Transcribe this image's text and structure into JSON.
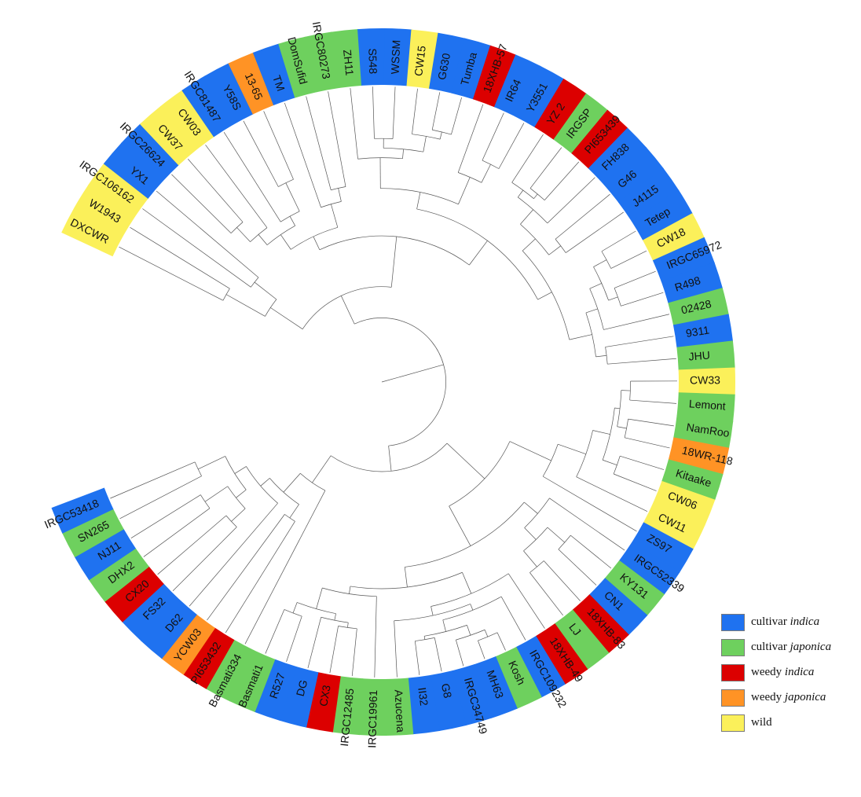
{
  "colors": {
    "cultivar_indica": "#1f72f0",
    "cultivar_japonica": "#6ed05e",
    "weedy_indica": "#dc0000",
    "weedy_japonica": "#ff9325",
    "wild": "#fbf05a",
    "branch": "#555555"
  },
  "legend": [
    {
      "key": "cultivar_indica",
      "prefix": "cultivar ",
      "italic": "indica"
    },
    {
      "key": "cultivar_japonica",
      "prefix": "cultivar ",
      "italic": "japonica"
    },
    {
      "key": "weedy_indica",
      "prefix": "weedy ",
      "italic": "indica"
    },
    {
      "key": "weedy_japonica",
      "prefix": "weedy ",
      "italic": "japonica"
    },
    {
      "key": "wild",
      "prefix": "wild",
      "italic": ""
    }
  ],
  "leaves": [
    {
      "label": "DXCWR",
      "group": "wild"
    },
    {
      "label": "W1943",
      "group": "wild"
    },
    {
      "label": "IRGC106162",
      "group": "wild"
    },
    {
      "label": "YX1",
      "group": "cultivar_indica"
    },
    {
      "label": "IRGC26624",
      "group": "cultivar_indica"
    },
    {
      "label": "CW37",
      "group": "wild"
    },
    {
      "label": "CW03",
      "group": "wild"
    },
    {
      "label": "IRGC81487",
      "group": "cultivar_indica"
    },
    {
      "label": "Y58S",
      "group": "cultivar_indica"
    },
    {
      "label": "13-65",
      "group": "weedy_japonica"
    },
    {
      "label": "TM",
      "group": "cultivar_indica"
    },
    {
      "label": "DomSufid",
      "group": "cultivar_japonica"
    },
    {
      "label": "IRGC80273",
      "group": "cultivar_japonica"
    },
    {
      "label": "ZH11",
      "group": "cultivar_japonica"
    },
    {
      "label": "S548",
      "group": "cultivar_indica"
    },
    {
      "label": "WSSM",
      "group": "cultivar_indica"
    },
    {
      "label": "CW15",
      "group": "wild"
    },
    {
      "label": "G630",
      "group": "cultivar_indica"
    },
    {
      "label": "Tumba",
      "group": "cultivar_indica"
    },
    {
      "label": "18XHB-57",
      "group": "weedy_indica"
    },
    {
      "label": "IR64",
      "group": "cultivar_indica"
    },
    {
      "label": "Y3551",
      "group": "cultivar_indica"
    },
    {
      "label": "YZ 2",
      "group": "weedy_indica"
    },
    {
      "label": "IRGSP",
      "group": "cultivar_japonica"
    },
    {
      "label": "PI653439",
      "group": "weedy_indica"
    },
    {
      "label": "FH838",
      "group": "cultivar_indica"
    },
    {
      "label": "G46",
      "group": "cultivar_indica"
    },
    {
      "label": "J4115",
      "group": "cultivar_indica"
    },
    {
      "label": "Tetep",
      "group": "cultivar_indica"
    },
    {
      "label": "CW18",
      "group": "wild"
    },
    {
      "label": "IRGC65972",
      "group": "cultivar_indica"
    },
    {
      "label": "R498",
      "group": "cultivar_indica"
    },
    {
      "label": "02428",
      "group": "cultivar_japonica"
    },
    {
      "label": "9311",
      "group": "cultivar_indica"
    },
    {
      "label": "JHU",
      "group": "cultivar_japonica"
    },
    {
      "label": "CW33",
      "group": "wild"
    },
    {
      "label": "Lemont",
      "group": "cultivar_japonica"
    },
    {
      "label": "NamRoo",
      "group": "cultivar_japonica"
    },
    {
      "label": "18WR-118",
      "group": "weedy_japonica"
    },
    {
      "label": "Kitaake",
      "group": "cultivar_japonica"
    },
    {
      "label": "CW06",
      "group": "wild"
    },
    {
      "label": "CW11",
      "group": "wild"
    },
    {
      "label": "ZS97",
      "group": "cultivar_indica"
    },
    {
      "label": "IRGC52339",
      "group": "cultivar_indica"
    },
    {
      "label": "KY131",
      "group": "cultivar_japonica"
    },
    {
      "label": "CN1",
      "group": "cultivar_indica"
    },
    {
      "label": "18XHB-83",
      "group": "weedy_indica"
    },
    {
      "label": "LJ",
      "group": "cultivar_japonica"
    },
    {
      "label": "18XHB-49",
      "group": "weedy_indica"
    },
    {
      "label": "IRGC109232",
      "group": "cultivar_indica"
    },
    {
      "label": "Kosh",
      "group": "cultivar_japonica"
    },
    {
      "label": "MH63",
      "group": "cultivar_indica"
    },
    {
      "label": "IRGC34749",
      "group": "cultivar_indica"
    },
    {
      "label": "G8",
      "group": "cultivar_indica"
    },
    {
      "label": "II32",
      "group": "cultivar_indica"
    },
    {
      "label": "Azucena",
      "group": "cultivar_japonica"
    },
    {
      "label": "IRGC19961",
      "group": "cultivar_japonica"
    },
    {
      "label": "IRGC12485",
      "group": "cultivar_japonica"
    },
    {
      "label": "CX3",
      "group": "weedy_indica"
    },
    {
      "label": "DG",
      "group": "cultivar_indica"
    },
    {
      "label": "R527",
      "group": "cultivar_indica"
    },
    {
      "label": "Basmati1",
      "group": "cultivar_japonica"
    },
    {
      "label": "Basmati334",
      "group": "cultivar_japonica"
    },
    {
      "label": "PI653432",
      "group": "weedy_indica"
    },
    {
      "label": "YCW03",
      "group": "weedy_japonica"
    },
    {
      "label": "D62",
      "group": "cultivar_indica"
    },
    {
      "label": "FS32",
      "group": "cultivar_indica"
    },
    {
      "label": "CX20",
      "group": "weedy_indica"
    },
    {
      "label": "DHX2",
      "group": "cultivar_japonica"
    },
    {
      "label": "NJ11",
      "group": "cultivar_indica"
    },
    {
      "label": "SN265",
      "group": "cultivar_japonica"
    },
    {
      "label": "IRGC53418",
      "group": "cultivar_indica"
    }
  ]
}
